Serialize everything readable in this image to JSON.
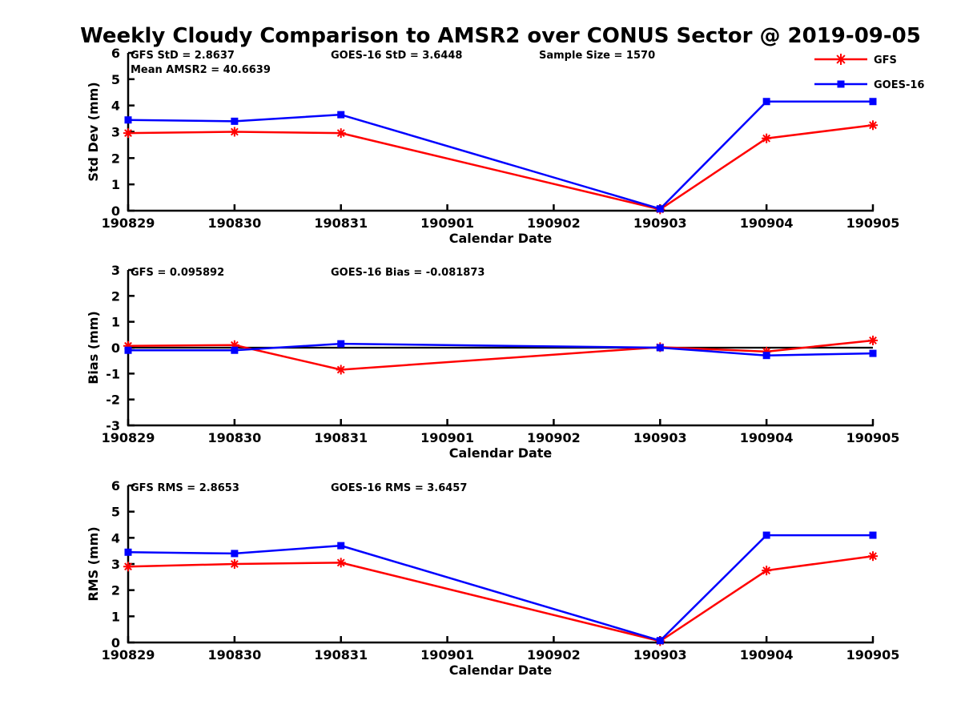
{
  "title": "Weekly Cloudy Comparison to AMSR2 over CONUS Sector @ 2019-09-05",
  "legend": {
    "position": "top-right",
    "entries": [
      {
        "label": "GFS",
        "color": "#ff0000",
        "marker": "asterisk"
      },
      {
        "label": "GOES-16",
        "color": "#0000ff",
        "marker": "square"
      }
    ]
  },
  "colors": {
    "gfs": "#ff0000",
    "goes16": "#0000ff",
    "axis": "#000000"
  },
  "chart_data": [
    {
      "type": "line",
      "name": "std-dev-panel",
      "ylabel": "Std Dev (mm)",
      "xlabel": "Calendar Date",
      "ylim": [
        0,
        6
      ],
      "yticks": [
        0,
        1,
        2,
        3,
        4,
        5,
        6
      ],
      "categories": [
        "190829",
        "190830",
        "190831",
        "190901",
        "190902",
        "190903",
        "190904",
        "190905"
      ],
      "grid": false,
      "zero_line": false,
      "annotations": [
        {
          "text": "GFS StD = 2.8637",
          "slot": 0
        },
        {
          "text": "Mean AMSR2 = 40.6639",
          "slot": 1
        },
        {
          "text": "GOES-16 StD = 3.6448",
          "slot": 2
        },
        {
          "text": "Sample Size = 1570",
          "slot": 3
        }
      ],
      "series": [
        {
          "name": "GFS",
          "color": "#ff0000",
          "marker": "asterisk",
          "x": [
            "190829",
            "190830",
            "190831",
            "190903",
            "190904",
            "190905"
          ],
          "values": [
            2.95,
            3.0,
            2.95,
            0.05,
            2.75,
            3.25
          ]
        },
        {
          "name": "GOES-16",
          "color": "#0000ff",
          "marker": "square",
          "x": [
            "190829",
            "190830",
            "190831",
            "190903",
            "190904",
            "190905"
          ],
          "values": [
            3.45,
            3.4,
            3.65,
            0.07,
            4.15,
            4.15
          ]
        }
      ]
    },
    {
      "type": "line",
      "name": "bias-panel",
      "ylabel": "Bias (mm)",
      "xlabel": "Calendar Date",
      "ylim": [
        -3,
        3
      ],
      "yticks": [
        -3,
        -2,
        -1,
        0,
        1,
        2,
        3
      ],
      "categories": [
        "190829",
        "190830",
        "190831",
        "190901",
        "190902",
        "190903",
        "190904",
        "190905"
      ],
      "grid": false,
      "zero_line": true,
      "annotations": [
        {
          "text": "GFS = 0.095892",
          "slot": 0
        },
        {
          "text": "GOES-16 Bias  = -0.081873",
          "slot": 2
        }
      ],
      "series": [
        {
          "name": "GFS",
          "color": "#ff0000",
          "marker": "asterisk",
          "x": [
            "190829",
            "190830",
            "190831",
            "190903",
            "190904",
            "190905"
          ],
          "values": [
            0.07,
            0.1,
            -0.85,
            0.02,
            -0.15,
            0.28
          ]
        },
        {
          "name": "GOES-16",
          "color": "#0000ff",
          "marker": "square",
          "x": [
            "190829",
            "190830",
            "190831",
            "190903",
            "190904",
            "190905"
          ],
          "values": [
            -0.1,
            -0.1,
            0.15,
            0.0,
            -0.3,
            -0.22
          ]
        }
      ]
    },
    {
      "type": "line",
      "name": "rms-panel",
      "ylabel": "RMS (mm)",
      "xlabel": "Calendar Date",
      "ylim": [
        0,
        6
      ],
      "yticks": [
        0,
        1,
        2,
        3,
        4,
        5,
        6
      ],
      "categories": [
        "190829",
        "190830",
        "190831",
        "190901",
        "190902",
        "190903",
        "190904",
        "190905"
      ],
      "grid": false,
      "zero_line": false,
      "annotations": [
        {
          "text": "GFS RMS = 2.8653",
          "slot": 0
        },
        {
          "text": "GOES-16 RMS = 3.6457",
          "slot": 2
        }
      ],
      "series": [
        {
          "name": "GFS",
          "color": "#ff0000",
          "marker": "asterisk",
          "x": [
            "190829",
            "190830",
            "190831",
            "190903",
            "190904",
            "190905"
          ],
          "values": [
            2.9,
            3.0,
            3.05,
            0.05,
            2.75,
            3.3
          ]
        },
        {
          "name": "GOES-16",
          "color": "#0000ff",
          "marker": "square",
          "x": [
            "190829",
            "190830",
            "190831",
            "190903",
            "190904",
            "190905"
          ],
          "values": [
            3.45,
            3.4,
            3.7,
            0.07,
            4.1,
            4.1
          ]
        }
      ]
    }
  ]
}
